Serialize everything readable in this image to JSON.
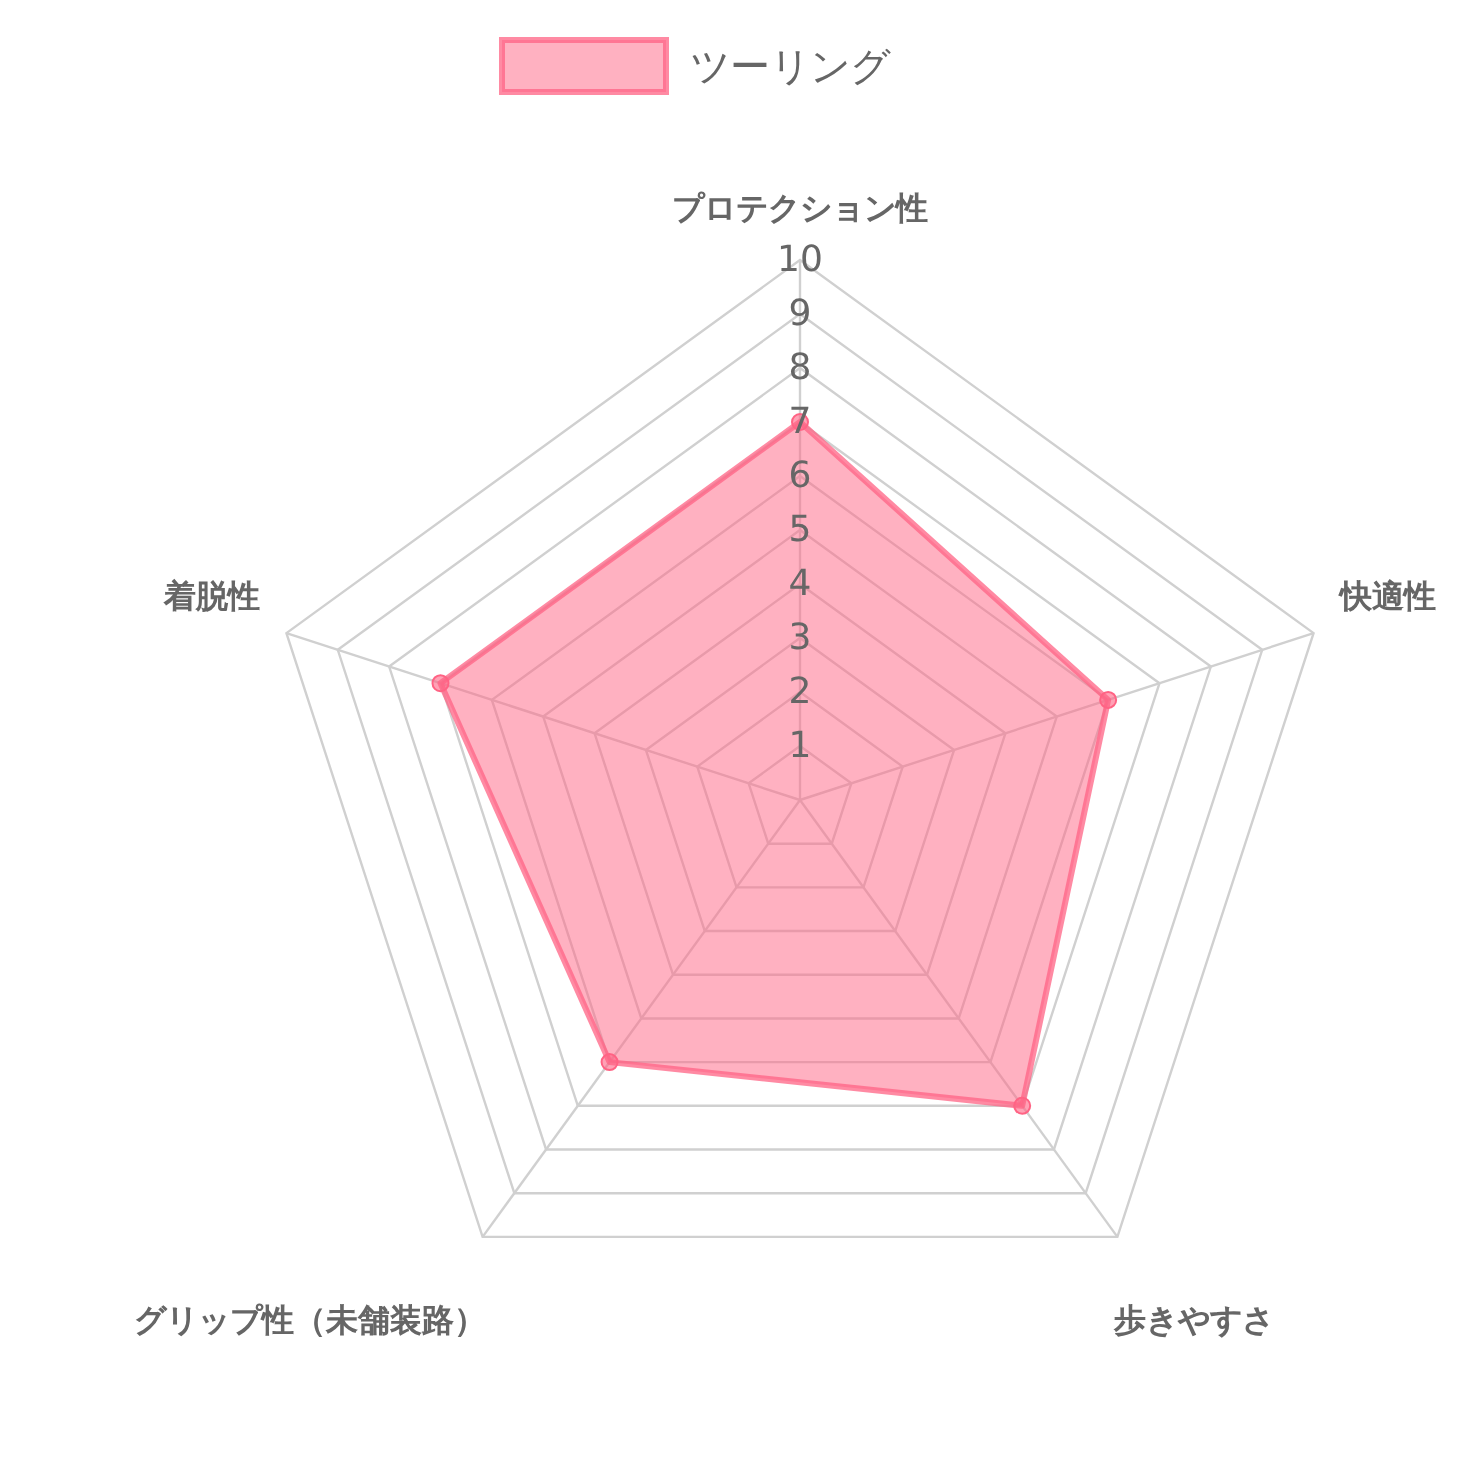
{
  "chart_data": {
    "type": "radar",
    "categories": [
      "プロテクション性",
      "快適性",
      "歩きやすさ",
      "グリップ性（未舗装路）",
      "着脱性"
    ],
    "series": [
      {
        "name": "ツーリング",
        "color": "#ff6384",
        "values": [
          7,
          6,
          7,
          6,
          7
        ]
      }
    ],
    "ylim": [
      0,
      10
    ],
    "yticks": [
      1,
      2,
      3,
      4,
      5,
      6,
      7,
      8,
      9,
      10
    ],
    "grid": true,
    "legend": "top",
    "marker": "circle"
  }
}
